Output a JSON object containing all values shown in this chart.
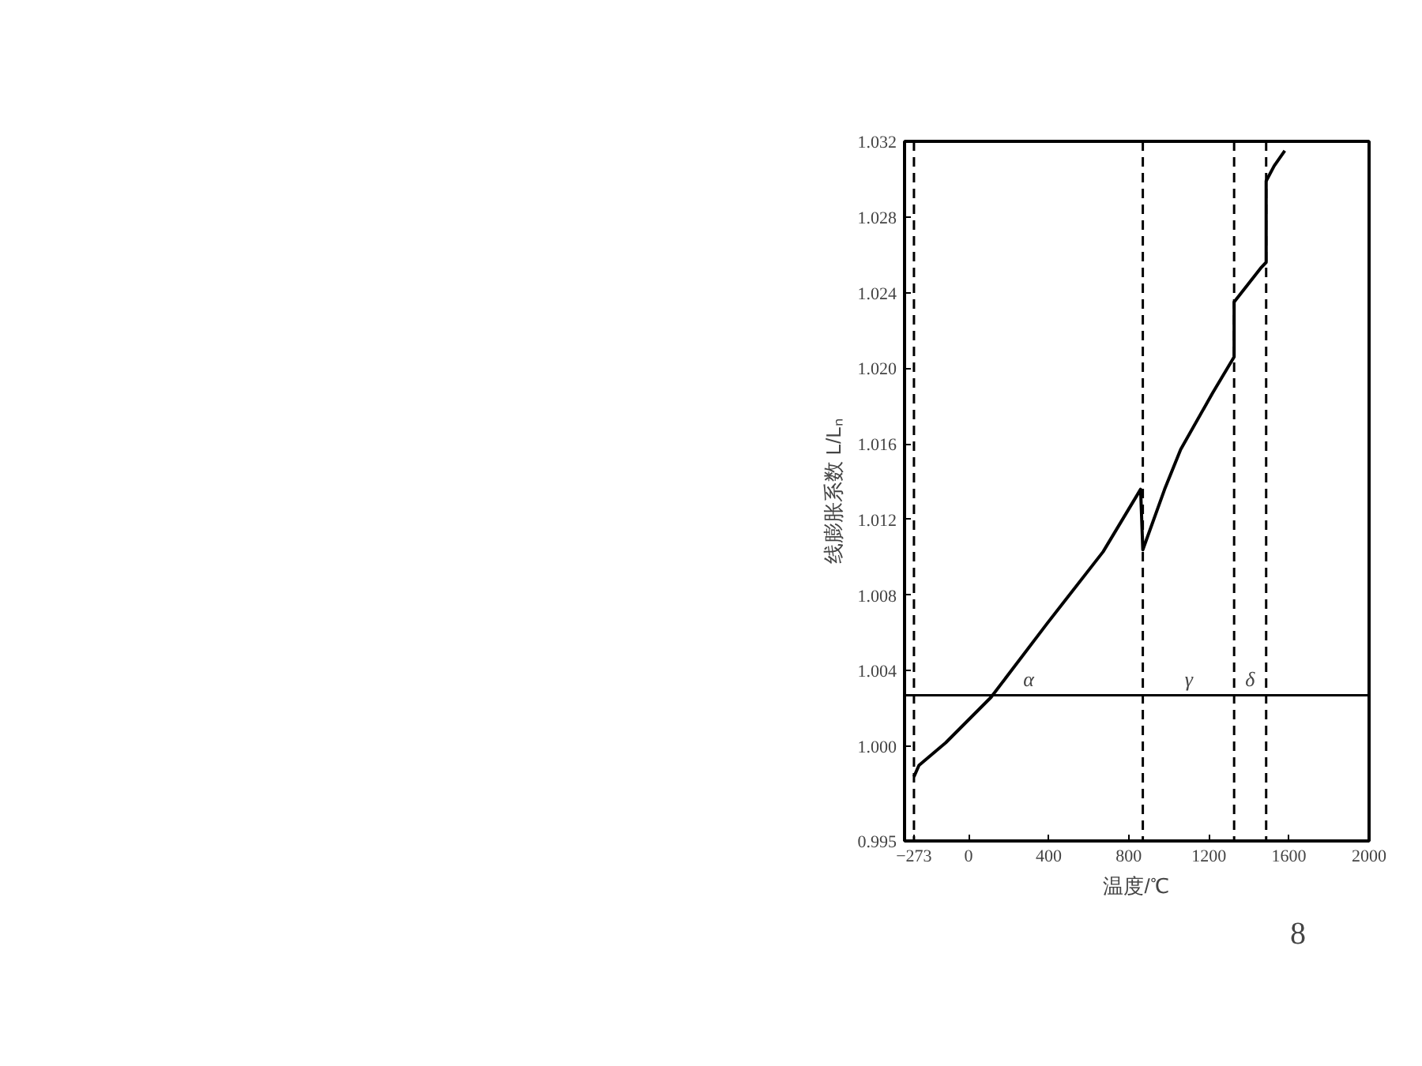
{
  "chart_data": {
    "type": "line",
    "xlabel": "温度/℃",
    "ylabel": "线膨胀系数 L/Lₙ",
    "x": [
      -273,
      -248,
      -114,
      112,
      392,
      672,
      859,
      870,
      979,
      1059,
      1219,
      1326,
      1326,
      1459,
      1486,
      1486,
      1526,
      1579
    ],
    "series": [
      {
        "color": "#000000",
        "values": [
          0.9984,
          0.999,
          1.0002,
          1.0026,
          1.0065,
          1.0103,
          1.0136,
          1.0104,
          1.0136,
          1.0157,
          1.0187,
          1.0206,
          1.0235,
          1.0253,
          1.0256,
          1.0299,
          1.0307,
          1.0315
        ]
      }
    ],
    "xlim": [
      -320,
      2000
    ],
    "ylim": [
      0.995,
      1.032
    ],
    "xticks": [
      -273,
      0,
      400,
      800,
      1200,
      1600,
      2000
    ],
    "yticks": [
      0.995,
      {
        "value": 1,
        "label": "1.000"
      },
      1.004,
      1.008,
      1.012,
      1.016,
      {
        "value": 1.02,
        "label": "1.020"
      },
      1.024,
      1.028,
      1.032
    ],
    "ref_lines": [
      {
        "axis": "x",
        "value": -273,
        "line_style": "dashed"
      },
      {
        "axis": "x",
        "value": 870,
        "line_style": "dashed"
      },
      {
        "axis": "x",
        "value": 1326,
        "line_style": "dashed"
      },
      {
        "axis": "x",
        "value": 1486,
        "line_style": "dashed"
      },
      {
        "axis": "y",
        "value": 1.0027,
        "line_style": "solid"
      }
    ],
    "annotations": [
      {
        "text": "α",
        "x": 300,
        "y": 1.0027
      },
      {
        "text": "γ",
        "x": 1100,
        "y": 1.0027
      },
      {
        "text": "δ",
        "x": 1405,
        "y": 1.0027
      },
      "8"
    ],
    "grid": false,
    "marker": "none",
    "line_style": "solid"
  }
}
